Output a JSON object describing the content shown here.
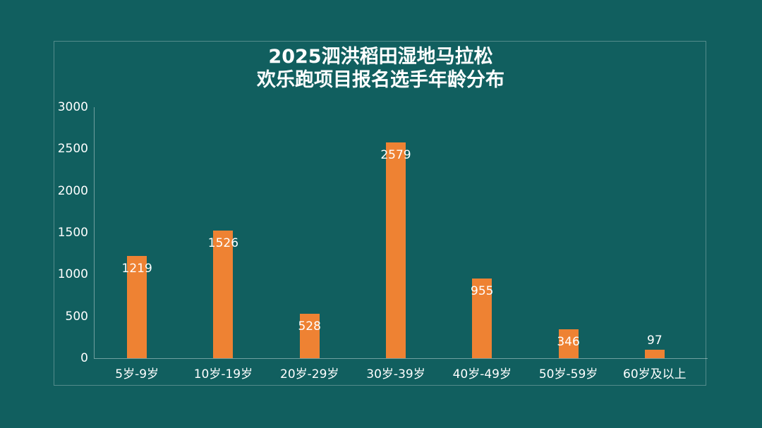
{
  "chart_data": {
    "type": "bar",
    "title": "2025泗洪稻田湿地马拉松 欢乐跑项目报名选手年龄分布",
    "title_line1": "2025泗洪稻田湿地马拉松",
    "title_line2": "欢乐跑项目报名选手年龄分布",
    "categories": [
      "5岁-9岁",
      "10岁-19岁",
      "20岁-29岁",
      "30岁-39岁",
      "40岁-49岁",
      "50岁-59岁",
      "60岁及以上"
    ],
    "values": [
      1219,
      1526,
      528,
      2579,
      955,
      346,
      97
    ],
    "value_labels_shown": true,
    "xlabel": "",
    "ylabel": "",
    "ylim": [
      0,
      3000
    ],
    "yticks": [
      0,
      500,
      1000,
      1500,
      2000,
      2500,
      3000
    ],
    "grid": false,
    "legend": "none",
    "colors": {
      "background": "#115F5F",
      "bar": "#EE8233",
      "text": "#FFFFFF",
      "axis_line": "rgba(255,255,255,0.40)",
      "panel_border": "rgba(255,255,255,0.28)"
    }
  }
}
